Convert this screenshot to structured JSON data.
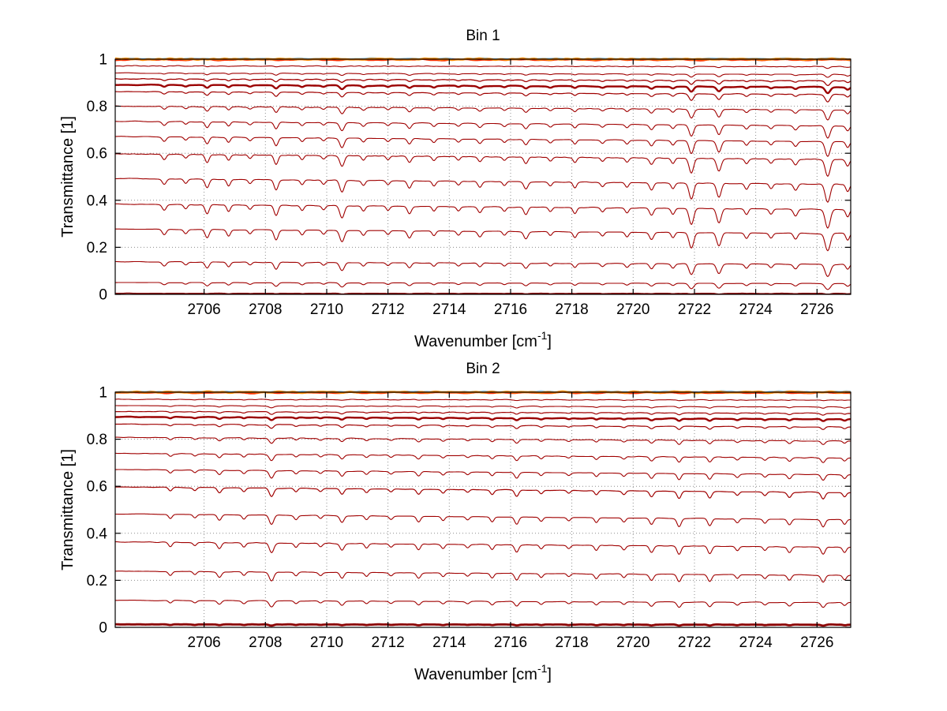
{
  "figure": {
    "background": "#ffffff",
    "curve_color_main": "#a00000",
    "curve_color_saturated": "#ff8c00"
  },
  "chart_data": [
    {
      "type": "line",
      "title": "Bin 1",
      "xlabel": "Wavenumber [cm-1]",
      "xlabel_parts": {
        "prefix": "Wavenumber [cm",
        "sup": "-1",
        "suffix": "]"
      },
      "ylabel": "Transmittance [1]",
      "xlim": [
        2703.1,
        2727.1
      ],
      "ylim": [
        0,
        1
      ],
      "xticks": [
        2706,
        2708,
        2710,
        2712,
        2714,
        2716,
        2718,
        2720,
        2722,
        2724,
        2726
      ],
      "xtick_labels": [
        "2706",
        "2708",
        "2710",
        "2712",
        "2714",
        "2716",
        "2718",
        "2720",
        "2722",
        "2724",
        "2726"
      ],
      "yticks": [
        0,
        0.2,
        0.4,
        0.6,
        0.8,
        1
      ],
      "ytick_labels": [
        "0",
        "0.2",
        "0.4",
        "0.6",
        "0.8",
        "1"
      ],
      "grid": "dotted",
      "series": [
        {
          "baseline": 1.002,
          "color": "#9ec9e8",
          "width": 2.0
        },
        {
          "baseline": 0.997,
          "color": "#ff2d00",
          "width": 1.8
        },
        {
          "baseline": 1.0,
          "color": "#ff8c00",
          "width": 2.6
        },
        {
          "baseline": 0.97,
          "color": "#a00000",
          "width": 1.1
        },
        {
          "baseline": 0.938,
          "color": "#a00000",
          "width": 1.1
        },
        {
          "baseline": 0.912,
          "color": "#a00000",
          "width": 1.3
        },
        {
          "baseline": 0.886,
          "color": "#9b0000",
          "width": 2.4
        },
        {
          "baseline": 0.856,
          "color": "#a00000",
          "width": 1.2
        },
        {
          "baseline": 0.792,
          "color": "#a00000",
          "width": 1.1
        },
        {
          "baseline": 0.726,
          "color": "#a00000",
          "width": 1.1
        },
        {
          "baseline": 0.66,
          "color": "#a00000",
          "width": 1.1
        },
        {
          "baseline": 0.585,
          "color": "#a00000",
          "width": 1.1
        },
        {
          "baseline": 0.48,
          "color": "#a00000",
          "width": 1.1
        },
        {
          "baseline": 0.372,
          "color": "#a00000",
          "width": 1.1
        },
        {
          "baseline": 0.268,
          "color": "#a00000",
          "width": 1.1
        },
        {
          "baseline": 0.133,
          "color": "#a00000",
          "width": 1.1
        },
        {
          "baseline": 0.048,
          "color": "#a00000",
          "width": 1.1
        },
        {
          "baseline": 0.004,
          "color": "#8b0000",
          "width": 1.5
        }
      ],
      "absorption_lines": [
        [
          2704.7,
          0.07,
          0.09
        ],
        [
          2705.4,
          0.05,
          0.08
        ],
        [
          2706.1,
          0.11,
          0.09
        ],
        [
          2706.8,
          0.08,
          0.08
        ],
        [
          2707.5,
          0.05,
          0.08
        ],
        [
          2708.35,
          0.13,
          0.09
        ],
        [
          2709.2,
          0.06,
          0.08
        ],
        [
          2709.9,
          0.05,
          0.08
        ],
        [
          2710.5,
          0.15,
          0.1
        ],
        [
          2711.2,
          0.06,
          0.08
        ],
        [
          2712.0,
          0.05,
          0.08
        ],
        [
          2712.7,
          0.09,
          0.09
        ],
        [
          2713.5,
          0.06,
          0.08
        ],
        [
          2714.3,
          0.05,
          0.08
        ],
        [
          2715.0,
          0.07,
          0.09
        ],
        [
          2715.8,
          0.05,
          0.08
        ],
        [
          2716.5,
          0.09,
          0.09
        ],
        [
          2717.3,
          0.05,
          0.08
        ],
        [
          2718.1,
          0.07,
          0.08
        ],
        [
          2719.0,
          0.05,
          0.08
        ],
        [
          2719.8,
          0.06,
          0.08
        ],
        [
          2720.6,
          0.09,
          0.09
        ],
        [
          2721.3,
          0.07,
          0.08
        ],
        [
          2721.9,
          0.21,
          0.1
        ],
        [
          2722.8,
          0.18,
          0.1
        ],
        [
          2723.7,
          0.07,
          0.08
        ],
        [
          2724.5,
          0.06,
          0.08
        ],
        [
          2725.3,
          0.08,
          0.09
        ],
        [
          2726.35,
          0.24,
          0.11
        ],
        [
          2727.0,
          0.09,
          0.08
        ]
      ]
    },
    {
      "type": "line",
      "title": "Bin 2",
      "xlabel": "Wavenumber [cm-1]",
      "xlabel_parts": {
        "prefix": "Wavenumber [cm",
        "sup": "-1",
        "suffix": "]"
      },
      "ylabel": "Transmittance [1]",
      "xlim": [
        2703.1,
        2727.1
      ],
      "ylim": [
        0,
        1
      ],
      "xticks": [
        2706,
        2708,
        2710,
        2712,
        2714,
        2716,
        2718,
        2720,
        2722,
        2724,
        2726
      ],
      "xtick_labels": [
        "2706",
        "2708",
        "2710",
        "2712",
        "2714",
        "2716",
        "2718",
        "2720",
        "2722",
        "2724",
        "2726"
      ],
      "yticks": [
        0,
        0.2,
        0.4,
        0.6,
        0.8,
        1
      ],
      "ytick_labels": [
        "0",
        "0.2",
        "0.4",
        "0.6",
        "0.8",
        "1"
      ],
      "grid": "dotted",
      "series": [
        {
          "baseline": 1.002,
          "color": "#9ec9e8",
          "width": 2.0
        },
        {
          "baseline": 0.997,
          "color": "#ff2d00",
          "width": 1.8
        },
        {
          "baseline": 1.0,
          "color": "#ff8c00",
          "width": 2.6
        },
        {
          "baseline": 0.968,
          "color": "#a00000",
          "width": 1.1
        },
        {
          "baseline": 0.94,
          "color": "#a00000",
          "width": 1.1
        },
        {
          "baseline": 0.914,
          "color": "#a00000",
          "width": 1.2
        },
        {
          "baseline": 0.89,
          "color": "#9b0000",
          "width": 2.4
        },
        {
          "baseline": 0.858,
          "color": "#a00000",
          "width": 1.2
        },
        {
          "baseline": 0.8,
          "color": "#a00000",
          "width": 1.1
        },
        {
          "baseline": 0.73,
          "color": "#a00000",
          "width": 1.1
        },
        {
          "baseline": 0.66,
          "color": "#a00000",
          "width": 1.1
        },
        {
          "baseline": 0.585,
          "color": "#a00000",
          "width": 1.2
        },
        {
          "baseline": 0.47,
          "color": "#a00000",
          "width": 1.1
        },
        {
          "baseline": 0.352,
          "color": "#a00000",
          "width": 1.1
        },
        {
          "baseline": 0.23,
          "color": "#a00000",
          "width": 1.1
        },
        {
          "baseline": 0.11,
          "color": "#a00000",
          "width": 1.1
        },
        {
          "baseline": 0.012,
          "color": "#8b0000",
          "width": 2.8
        }
      ],
      "absorption_lines": [
        [
          2704.9,
          0.05,
          0.08
        ],
        [
          2705.7,
          0.04,
          0.08
        ],
        [
          2706.5,
          0.07,
          0.09
        ],
        [
          2707.3,
          0.05,
          0.08
        ],
        [
          2708.2,
          0.12,
          0.1
        ],
        [
          2709.0,
          0.05,
          0.08
        ],
        [
          2709.8,
          0.04,
          0.08
        ],
        [
          2710.5,
          0.08,
          0.09
        ],
        [
          2711.3,
          0.05,
          0.08
        ],
        [
          2712.1,
          0.04,
          0.08
        ],
        [
          2713.0,
          0.07,
          0.09
        ],
        [
          2713.8,
          0.05,
          0.08
        ],
        [
          2714.6,
          0.04,
          0.08
        ],
        [
          2715.4,
          0.06,
          0.08
        ],
        [
          2716.2,
          0.09,
          0.09
        ],
        [
          2717.0,
          0.05,
          0.08
        ],
        [
          2717.9,
          0.04,
          0.08
        ],
        [
          2718.8,
          0.06,
          0.08
        ],
        [
          2719.7,
          0.05,
          0.08
        ],
        [
          2720.6,
          0.08,
          0.09
        ],
        [
          2721.5,
          0.1,
          0.09
        ],
        [
          2722.5,
          0.09,
          0.09
        ],
        [
          2723.4,
          0.05,
          0.08
        ],
        [
          2724.3,
          0.05,
          0.08
        ],
        [
          2725.1,
          0.07,
          0.09
        ],
        [
          2726.2,
          0.09,
          0.09
        ],
        [
          2726.9,
          0.06,
          0.08
        ]
      ]
    }
  ]
}
